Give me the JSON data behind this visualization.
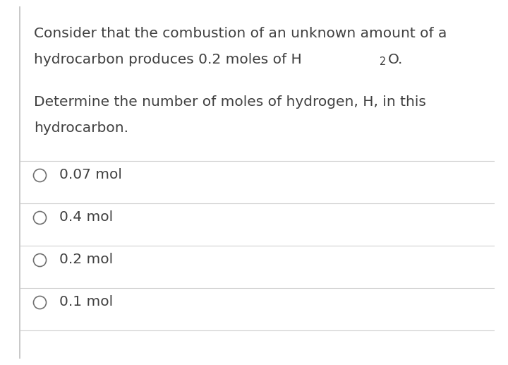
{
  "background_color": "#ffffff",
  "border_color": "#c8c8c8",
  "text_color": "#404040",
  "line_color": "#d0d0d0",
  "p1_line1": "Consider that the combustion of an unknown amount of a",
  "p1_line2_pre": "hydrocarbon produces 0.2 moles of H",
  "p1_line2_sub": "2",
  "p1_line2_post": "O.",
  "p2_line1": "Determine the number of moles of hydrogen, H, in this",
  "p2_line2": "hydrocarbon.",
  "options": [
    "0.07 mol",
    "0.4 mol",
    "0.2 mol",
    "0.1 mol"
  ],
  "font_size": 14.5,
  "circle_color": "#707070",
  "fig_width": 7.2,
  "fig_height": 5.17,
  "dpi": 100
}
